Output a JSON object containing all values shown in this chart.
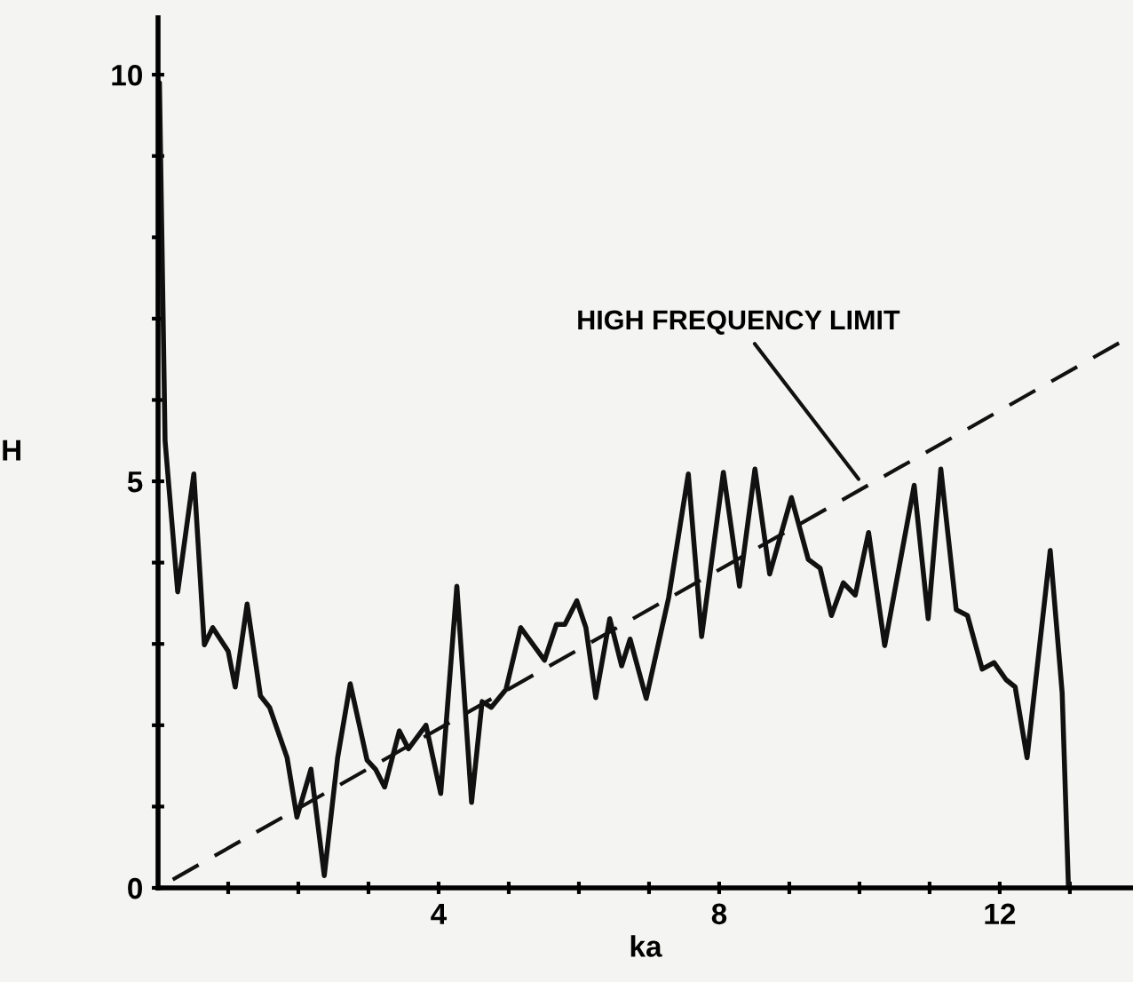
{
  "chart_data": {
    "type": "line",
    "xlabel": "ka",
    "ylabel": "H",
    "xlim": [
      0,
      13.9
    ],
    "ylim": [
      0,
      10.7
    ],
    "xticks": [
      {
        "value": 1,
        "label": null
      },
      {
        "value": 2,
        "label": null
      },
      {
        "value": 3,
        "label": null
      },
      4,
      {
        "value": 5,
        "label": null
      },
      {
        "value": 6,
        "label": null
      },
      {
        "value": 7,
        "label": null
      },
      8,
      {
        "value": 9,
        "label": null
      },
      {
        "value": 10,
        "label": null
      },
      {
        "value": 11,
        "label": null
      },
      12,
      {
        "value": 13,
        "label": null
      }
    ],
    "yticks": [
      0,
      {
        "value": 1,
        "label": null
      },
      {
        "value": 2,
        "label": null
      },
      {
        "value": 3,
        "label": null
      },
      {
        "value": 4,
        "label": null
      },
      5,
      {
        "value": 6,
        "label": null
      },
      {
        "value": 7,
        "label": null
      },
      {
        "value": 8,
        "label": null
      },
      {
        "value": 9,
        "label": null
      },
      10
    ],
    "grid": false,
    "legend": false,
    "marker": "none",
    "series": [
      {
        "color": "#111111",
        "line_style": "solid",
        "x": [
          0,
          0.02,
          0.1,
          0.28,
          0.51,
          0.66,
          0.78,
          1.0,
          1.1,
          1.27,
          1.46,
          1.59,
          1.84,
          1.98,
          2.18,
          2.37,
          2.56,
          2.74,
          2.98,
          3.1,
          3.23,
          3.44,
          3.57,
          3.82,
          4.03,
          4.26,
          4.47,
          4.62,
          4.75,
          4.96,
          5.17,
          5.51,
          5.68,
          5.8,
          5.97,
          6.1,
          6.24,
          6.44,
          6.61,
          6.73,
          6.96,
          7.28,
          7.56,
          7.75,
          8.06,
          8.29,
          8.51,
          8.72,
          9.03,
          9.27,
          9.44,
          9.6,
          9.77,
          9.94,
          10.13,
          10.36,
          10.78,
          10.98,
          11.16,
          11.38,
          11.54,
          11.75,
          11.92,
          12.09,
          12.22,
          12.39,
          12.72,
          12.89,
          12.98
        ],
        "values": [
          9.9,
          9.9,
          5.5,
          3.64,
          5.09,
          2.99,
          3.2,
          2.91,
          2.47,
          3.49,
          2.36,
          2.22,
          1.6,
          0.87,
          1.46,
          0.15,
          1.6,
          2.51,
          1.57,
          1.46,
          1.24,
          1.93,
          1.71,
          2.0,
          1.16,
          3.71,
          1.05,
          2.29,
          2.22,
          2.44,
          3.2,
          2.8,
          3.24,
          3.24,
          3.53,
          3.2,
          2.34,
          3.31,
          2.73,
          3.06,
          2.33,
          3.57,
          5.09,
          3.09,
          5.11,
          3.71,
          5.15,
          3.86,
          4.8,
          4.04,
          3.93,
          3.35,
          3.75,
          3.6,
          4.37,
          2.98,
          4.95,
          3.31,
          5.15,
          3.42,
          3.35,
          2.69,
          2.77,
          2.56,
          2.47,
          1.6,
          4.15,
          2.4,
          0
        ]
      },
      {
        "color": "#111111",
        "line_style": "dashed",
        "x": [
          0,
          13.7
        ],
        "values": [
          0,
          6.7
        ]
      }
    ],
    "annotations": [
      {
        "text": "HIGH FREQUENCY LIMIT",
        "x": 10.03,
        "y": 4.98
      }
    ]
  }
}
